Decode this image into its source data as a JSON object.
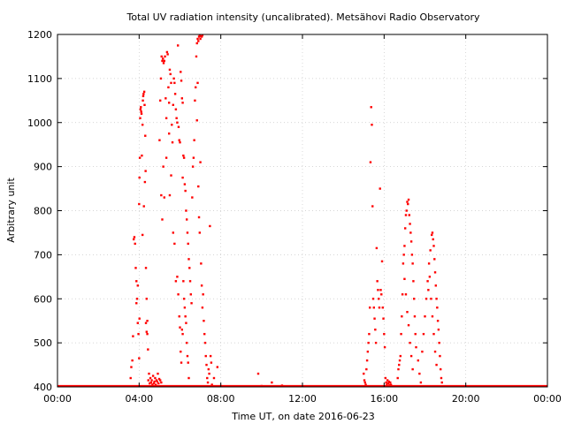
{
  "chart_data": {
    "type": "scatter",
    "title": "Total UV radiation intensity (uncalibrated). Metsähovi Radio Observatory",
    "xlabel": "Time UT, on date 2016-06-23",
    "ylabel": "Arbitrary unit",
    "xlim_hours": [
      0,
      24
    ],
    "ylim": [
      400,
      1200
    ],
    "grid": true,
    "marker_color": "#ff0000",
    "x_ticks": [
      {
        "hour": 0,
        "label": "00:00"
      },
      {
        "hour": 4,
        "label": "04:00"
      },
      {
        "hour": 8,
        "label": "08:00"
      },
      {
        "hour": 12,
        "label": "12:00"
      },
      {
        "hour": 16,
        "label": "16:00"
      },
      {
        "hour": 20,
        "label": "20:00"
      },
      {
        "hour": 24,
        "label": "00:00"
      }
    ],
    "y_ticks": [
      {
        "value": 400,
        "label": "400"
      },
      {
        "value": 500,
        "label": "500"
      },
      {
        "value": 600,
        "label": "600"
      },
      {
        "value": 700,
        "label": "700"
      },
      {
        "value": 800,
        "label": "800"
      },
      {
        "value": 900,
        "label": "900"
      },
      {
        "value": 1000,
        "label": "1000"
      },
      {
        "value": 1100,
        "label": "1100"
      },
      {
        "value": 1200,
        "label": "1200"
      }
    ],
    "series": [
      {
        "points": [
          [
            "03:35",
            420
          ],
          [
            "03:37",
            445
          ],
          [
            "03:40",
            460
          ],
          [
            "03:42",
            515
          ],
          [
            "03:44",
            735
          ],
          [
            "03:46",
            740
          ],
          [
            "03:48",
            725
          ],
          [
            "03:50",
            670
          ],
          [
            "03:52",
            640
          ],
          [
            "03:54",
            600
          ],
          [
            "03:56",
            545
          ],
          [
            "03:58",
            520
          ],
          [
            "04:00",
            465
          ],
          [
            "04:01",
            555
          ],
          [
            "03:52",
            590
          ],
          [
            "03:56",
            630
          ],
          [
            "04:00",
            815
          ],
          [
            "04:01",
            875
          ],
          [
            "04:02",
            920
          ],
          [
            "04:03",
            1010
          ],
          [
            "04:04",
            1030
          ],
          [
            "04:05",
            1035
          ],
          [
            "04:06",
            1025
          ],
          [
            "04:07",
            1020
          ],
          [
            "04:08",
            925
          ],
          [
            "04:10",
            995
          ],
          [
            "04:11",
            1050
          ],
          [
            "04:12",
            1060
          ],
          [
            "04:13",
            1065
          ],
          [
            "04:15",
            1070
          ],
          [
            "04:16",
            1040
          ],
          [
            "04:18",
            970
          ],
          [
            "04:19",
            890
          ],
          [
            "04:20",
            670
          ],
          [
            "04:22",
            600
          ],
          [
            "04:24",
            550
          ],
          [
            "04:26",
            485
          ],
          [
            "04:27",
            415
          ],
          [
            "04:29",
            430
          ],
          [
            "04:31",
            408
          ],
          [
            "04:33",
            420
          ],
          [
            "04:35",
            410
          ],
          [
            "04:37",
            415
          ],
          [
            "04:39",
            405
          ],
          [
            "04:41",
            425
          ],
          [
            "04:43",
            408
          ],
          [
            "04:45",
            412
          ],
          [
            "04:47",
            420
          ],
          [
            "04:49",
            405
          ],
          [
            "04:51",
            415
          ],
          [
            "04:53",
            412
          ],
          [
            "04:55",
            430
          ],
          [
            "04:57",
            408
          ],
          [
            "04:59",
            418
          ],
          [
            "05:02",
            415
          ],
          [
            "05:05",
            410
          ],
          [
            "04:10",
            745
          ],
          [
            "04:14",
            810
          ],
          [
            "04:17",
            865
          ],
          [
            "04:20",
            545
          ],
          [
            "04:22",
            525
          ],
          [
            "04:24",
            520
          ],
          [
            "05:00",
            960
          ],
          [
            "05:02",
            1050
          ],
          [
            "05:04",
            1100
          ],
          [
            "05:06",
            1150
          ],
          [
            "05:08",
            1140
          ],
          [
            "05:10",
            1145
          ],
          [
            "05:12",
            1135
          ],
          [
            "05:14",
            1140
          ],
          [
            "05:16",
            1150
          ],
          [
            "05:18",
            1055
          ],
          [
            "05:20",
            1010
          ],
          [
            "05:22",
            1160
          ],
          [
            "05:24",
            1155
          ],
          [
            "05:26",
            1080
          ],
          [
            "05:28",
            1045
          ],
          [
            "05:30",
            1120
          ],
          [
            "05:32",
            1110
          ],
          [
            "05:34",
            1090
          ],
          [
            "05:36",
            995
          ],
          [
            "05:38",
            955
          ],
          [
            "05:40",
            1040
          ],
          [
            "05:42",
            1100
          ],
          [
            "05:44",
            1090
          ],
          [
            "05:46",
            1065
          ],
          [
            "05:48",
            1030
          ],
          [
            "05:50",
            1010
          ],
          [
            "05:52",
            1000
          ],
          [
            "05:54",
            1175
          ],
          [
            "05:56",
            990
          ],
          [
            "05:58",
            960
          ],
          [
            "06:00",
            955
          ],
          [
            "06:02",
            1115
          ],
          [
            "06:04",
            1095
          ],
          [
            "06:06",
            1055
          ],
          [
            "06:08",
            875
          ],
          [
            "05:05",
            835
          ],
          [
            "05:08",
            780
          ],
          [
            "05:11",
            900
          ],
          [
            "05:14",
            830
          ],
          [
            "05:20",
            920
          ],
          [
            "05:28",
            975
          ],
          [
            "05:30",
            835
          ],
          [
            "05:34",
            880
          ],
          [
            "05:40",
            750
          ],
          [
            "05:44",
            725
          ],
          [
            "05:48",
            640
          ],
          [
            "05:52",
            650
          ],
          [
            "05:55",
            610
          ],
          [
            "05:58",
            560
          ],
          [
            "06:00",
            535
          ],
          [
            "06:02",
            480
          ],
          [
            "06:04",
            455
          ],
          [
            "06:06",
            530
          ],
          [
            "06:08",
            520
          ],
          [
            "06:10",
            640
          ],
          [
            "06:12",
            600
          ],
          [
            "06:14",
            580
          ],
          [
            "06:16",
            560
          ],
          [
            "06:18",
            545
          ],
          [
            "06:20",
            500
          ],
          [
            "06:22",
            470
          ],
          [
            "06:24",
            455
          ],
          [
            "06:26",
            420
          ],
          [
            "06:08",
            1045
          ],
          [
            "06:10",
            925
          ],
          [
            "06:12",
            920
          ],
          [
            "06:14",
            860
          ],
          [
            "06:16",
            845
          ],
          [
            "06:18",
            800
          ],
          [
            "06:20",
            780
          ],
          [
            "06:22",
            750
          ],
          [
            "06:24",
            725
          ],
          [
            "06:26",
            690
          ],
          [
            "06:28",
            670
          ],
          [
            "06:30",
            640
          ],
          [
            "06:32",
            610
          ],
          [
            "06:34",
            590
          ],
          [
            "06:36",
            830
          ],
          [
            "06:38",
            900
          ],
          [
            "06:40",
            920
          ],
          [
            "06:42",
            960
          ],
          [
            "06:44",
            1050
          ],
          [
            "06:46",
            1080
          ],
          [
            "06:48",
            1150
          ],
          [
            "06:50",
            1180
          ],
          [
            "06:52",
            1190
          ],
          [
            "06:54",
            1185
          ],
          [
            "06:56",
            1195
          ],
          [
            "06:58",
            1198
          ],
          [
            "07:00",
            1190
          ],
          [
            "07:02",
            1196
          ],
          [
            "07:04",
            1195
          ],
          [
            "07:06",
            1198
          ],
          [
            "06:50",
            1005
          ],
          [
            "06:52",
            1090
          ],
          [
            "06:54",
            855
          ],
          [
            "06:56",
            785
          ],
          [
            "06:58",
            750
          ],
          [
            "07:00",
            910
          ],
          [
            "07:02",
            680
          ],
          [
            "07:04",
            630
          ],
          [
            "07:06",
            580
          ],
          [
            "07:08",
            610
          ],
          [
            "07:10",
            550
          ],
          [
            "07:12",
            520
          ],
          [
            "07:14",
            500
          ],
          [
            "07:16",
            470
          ],
          [
            "07:18",
            450
          ],
          [
            "07:20",
            420
          ],
          [
            "07:22",
            410
          ],
          [
            "07:24",
            440
          ],
          [
            "07:26",
            430
          ],
          [
            "07:28",
            765
          ],
          [
            "07:30",
            470
          ],
          [
            "07:32",
            455
          ],
          [
            "07:34",
            405
          ],
          [
            "07:40",
            420
          ],
          [
            "07:50",
            445
          ],
          [
            "08:00",
            402
          ],
          [
            "09:50",
            430
          ],
          [
            "10:00",
            402
          ],
          [
            "10:30",
            410
          ],
          [
            "11:00",
            403
          ],
          [
            "15:00",
            430
          ],
          [
            "15:02",
            415
          ],
          [
            "15:04",
            410
          ],
          [
            "15:06",
            405
          ],
          [
            "15:08",
            440
          ],
          [
            "15:10",
            460
          ],
          [
            "15:12",
            480
          ],
          [
            "15:14",
            500
          ],
          [
            "15:16",
            520
          ],
          [
            "15:18",
            580
          ],
          [
            "15:20",
            910
          ],
          [
            "15:22",
            1035
          ],
          [
            "15:24",
            995
          ],
          [
            "15:26",
            810
          ],
          [
            "15:28",
            600
          ],
          [
            "15:30",
            580
          ],
          [
            "15:32",
            555
          ],
          [
            "15:34",
            530
          ],
          [
            "15:36",
            500
          ],
          [
            "15:38",
            715
          ],
          [
            "15:40",
            640
          ],
          [
            "15:42",
            620
          ],
          [
            "15:44",
            600
          ],
          [
            "15:46",
            580
          ],
          [
            "15:48",
            850
          ],
          [
            "15:50",
            620
          ],
          [
            "15:52",
            610
          ],
          [
            "15:54",
            685
          ],
          [
            "15:56",
            580
          ],
          [
            "15:58",
            555
          ],
          [
            "16:00",
            520
          ],
          [
            "16:02",
            490
          ],
          [
            "16:04",
            420
          ],
          [
            "16:06",
            410
          ],
          [
            "16:08",
            405
          ],
          [
            "16:10",
            415
          ],
          [
            "16:12",
            408
          ],
          [
            "16:14",
            412
          ],
          [
            "16:16",
            404
          ],
          [
            "16:18",
            410
          ],
          [
            "16:20",
            405
          ],
          [
            "16:22",
            402
          ],
          [
            "16:40",
            420
          ],
          [
            "16:42",
            440
          ],
          [
            "16:44",
            450
          ],
          [
            "16:46",
            460
          ],
          [
            "16:48",
            470
          ],
          [
            "16:50",
            520
          ],
          [
            "16:52",
            560
          ],
          [
            "16:54",
            610
          ],
          [
            "16:56",
            680
          ],
          [
            "16:58",
            700
          ],
          [
            "17:00",
            720
          ],
          [
            "17:02",
            760
          ],
          [
            "17:04",
            790
          ],
          [
            "17:06",
            800
          ],
          [
            "17:08",
            820
          ],
          [
            "17:10",
            815
          ],
          [
            "17:12",
            825
          ],
          [
            "17:14",
            790
          ],
          [
            "17:16",
            770
          ],
          [
            "17:18",
            750
          ],
          [
            "17:20",
            730
          ],
          [
            "17:22",
            700
          ],
          [
            "17:24",
            680
          ],
          [
            "17:26",
            640
          ],
          [
            "17:28",
            600
          ],
          [
            "17:30",
            560
          ],
          [
            "17:32",
            520
          ],
          [
            "17:34",
            490
          ],
          [
            "17:00",
            645
          ],
          [
            "17:04",
            610
          ],
          [
            "17:08",
            570
          ],
          [
            "17:12",
            540
          ],
          [
            "17:16",
            500
          ],
          [
            "17:20",
            470
          ],
          [
            "17:24",
            440
          ],
          [
            "17:40",
            460
          ],
          [
            "17:44",
            430
          ],
          [
            "17:48",
            410
          ],
          [
            "17:52",
            480
          ],
          [
            "17:56",
            520
          ],
          [
            "18:00",
            560
          ],
          [
            "18:04",
            600
          ],
          [
            "18:08",
            640
          ],
          [
            "18:12",
            680
          ],
          [
            "18:16",
            710
          ],
          [
            "18:20",
            745
          ],
          [
            "18:22",
            750
          ],
          [
            "18:24",
            735
          ],
          [
            "18:26",
            720
          ],
          [
            "18:28",
            690
          ],
          [
            "18:30",
            660
          ],
          [
            "18:32",
            630
          ],
          [
            "18:34",
            600
          ],
          [
            "18:36",
            580
          ],
          [
            "18:38",
            550
          ],
          [
            "18:40",
            530
          ],
          [
            "18:42",
            500
          ],
          [
            "18:44",
            470
          ],
          [
            "18:46",
            440
          ],
          [
            "18:48",
            420
          ],
          [
            "18:50",
            410
          ],
          [
            "18:10",
            620
          ],
          [
            "18:14",
            650
          ],
          [
            "18:18",
            600
          ],
          [
            "18:22",
            560
          ],
          [
            "18:26",
            520
          ],
          [
            "18:30",
            480
          ],
          [
            "18:34",
            450
          ]
        ]
      }
    ]
  }
}
